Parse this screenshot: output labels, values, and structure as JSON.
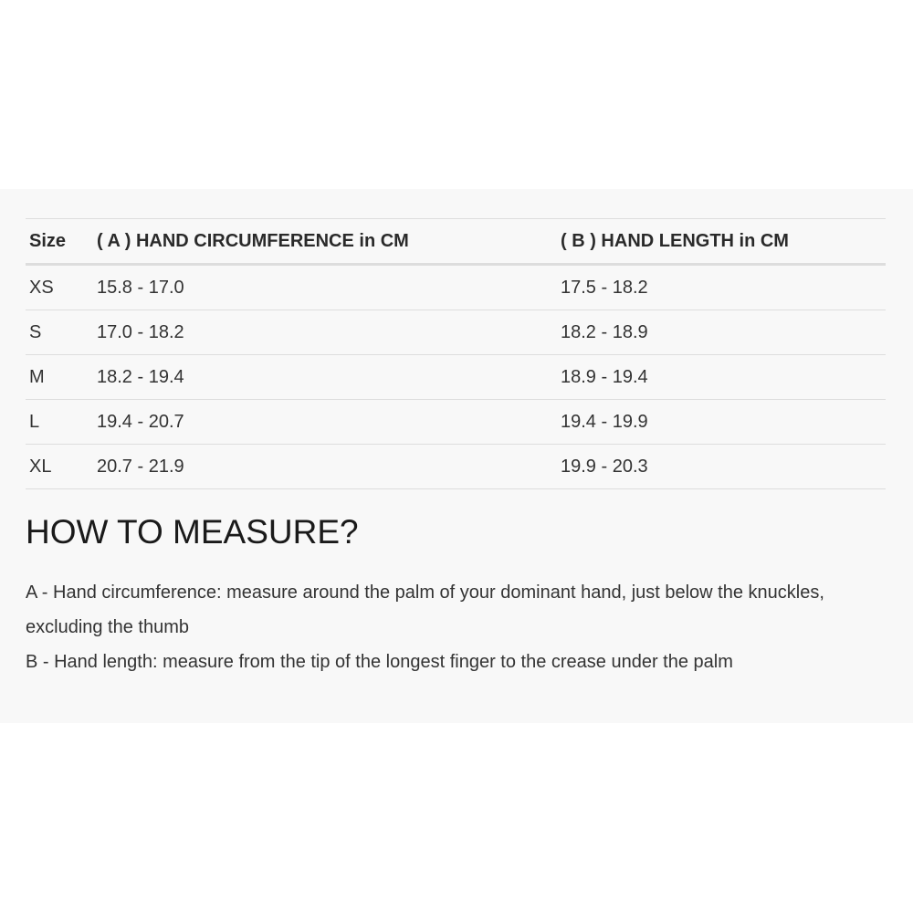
{
  "table": {
    "headers": [
      "Size",
      "( A ) HAND CIRCUMFERENCE in CM",
      "( B ) HAND LENGTH in CM"
    ],
    "rows": [
      [
        "XS",
        "15.8 - 17.0",
        "17.5 - 18.2"
      ],
      [
        "S",
        "17.0 - 18.2",
        "18.2 - 18.9"
      ],
      [
        "M",
        "18.2 - 19.4",
        "18.9 - 19.4"
      ],
      [
        "L",
        "19.4 - 20.7",
        "19.4 - 19.9"
      ],
      [
        "XL",
        "20.7 - 21.9",
        "19.9 - 20.3"
      ]
    ]
  },
  "how_to": {
    "title": "HOW TO MEASURE?",
    "lines": [
      "A - Hand circumference: measure around the palm of your dominant hand, just below the knuckles, excluding the thumb",
      "B - Hand length: measure from the tip of the longest finger to the crease under the palm"
    ]
  }
}
